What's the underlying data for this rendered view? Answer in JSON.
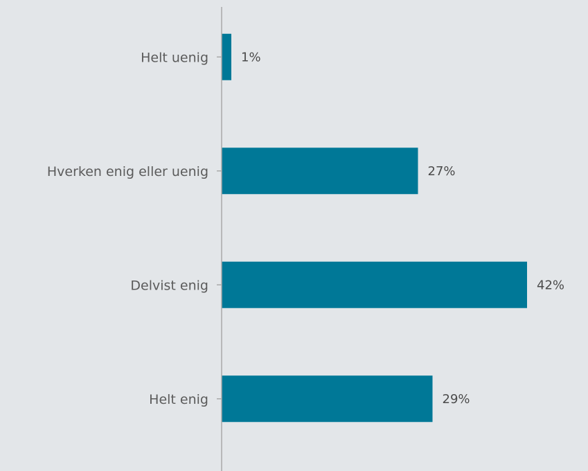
{
  "chart_data": {
    "type": "bar",
    "orientation": "horizontal",
    "categories": [
      "Helt uenig",
      "Hverken enig eller uenig",
      "Delvist enig",
      "Helt enig"
    ],
    "values": [
      1,
      27,
      42,
      29
    ],
    "value_labels": [
      "1%",
      "27%",
      "42%",
      "29%"
    ],
    "unit": "%",
    "xlim": [
      0,
      42
    ],
    "grid": false,
    "legend": "none",
    "colors": {
      "bar": "#007897",
      "axis": "#a9a9a9",
      "background": "#e3e6e9",
      "category_text": "#5b5b5b",
      "value_text": "#4a4a4a"
    }
  }
}
